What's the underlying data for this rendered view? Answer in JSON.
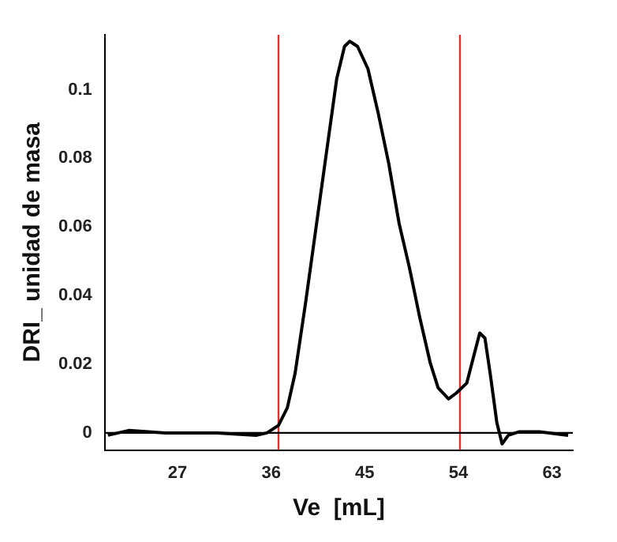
{
  "chart_data": {
    "type": "line",
    "xlabel": "Ve  [mL]",
    "ylabel": "DRI_ unidad de masa",
    "x": [
      20.3,
      22.3,
      25.8,
      30.8,
      34.6,
      35.6,
      36.7,
      37.55,
      38.3,
      39.3,
      40.3,
      41.3,
      42.3,
      43.05,
      43.55,
      44.3,
      45.3,
      46.3,
      47.3,
      48.3,
      49.3,
      50.3,
      51.3,
      52.05,
      53.05,
      53.8,
      54.8,
      55.55,
      56.05,
      56.55,
      57.05,
      57.7,
      58.2,
      58.8,
      59.8,
      61.8,
      64.55
    ],
    "series": [
      {
        "color": "#000000",
        "values": [
          -0.0007,
          0.0007,
          0,
          0,
          -0.0007,
          0,
          0.0022,
          0.0073,
          0.0174,
          0.0378,
          0.0596,
          0.0814,
          0.1032,
          0.1126,
          0.1141,
          0.1126,
          0.1061,
          0.093,
          0.0785,
          0.061,
          0.048,
          0.0334,
          0.0203,
          0.0131,
          0.0099,
          0.0116,
          0.0145,
          0.0233,
          0.0291,
          0.0276,
          0.0174,
          0.0029,
          -0.0032,
          -0.0007,
          0.0003,
          0.0003,
          -0.0007
        ]
      }
    ],
    "xlim": [
      20,
      65
    ],
    "xticks": [
      27,
      36,
      45,
      54,
      63
    ],
    "ylim": [
      -0.005,
      0.116
    ],
    "yticks": [
      0,
      0.02,
      0.04,
      0.06,
      0.08,
      0.1
    ],
    "ref_lines": [
      {
        "axis": "x",
        "value": 36.7,
        "color": "#e8302a"
      },
      {
        "axis": "x",
        "value": 54.15,
        "color": "#e8302a"
      },
      {
        "axis": "y",
        "value": 0,
        "color": "#000000"
      }
    ],
    "grid": false,
    "legend": false,
    "marker": "none",
    "line_style": "solid"
  }
}
